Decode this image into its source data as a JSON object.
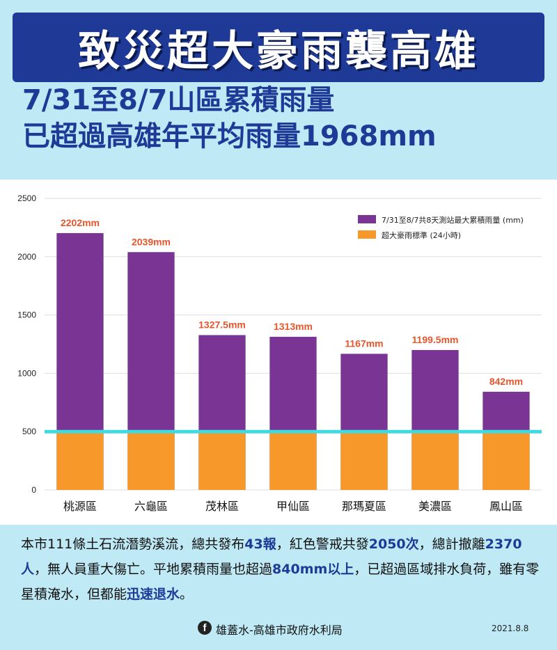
{
  "header": {
    "title": "致災超大豪雨襲高雄",
    "subtitle_line1": "7/31至8/7山區累積雨量",
    "subtitle_line2": "已超過高雄年平均雨量1968mm"
  },
  "chart_data": {
    "type": "bar",
    "categories": [
      "桃源區",
      "六龜區",
      "茂林區",
      "甲仙區",
      "那瑪夏區",
      "美濃區",
      "鳳山區"
    ],
    "series": [
      {
        "name": "7/31至8/7共8天測站最大累積雨量 (mm)",
        "values": [
          2202,
          2039,
          1327.5,
          1313,
          1167,
          1199.5,
          842
        ],
        "labels": [
          "2202mm",
          "2039mm",
          "1327.5mm",
          "1313mm",
          "1167mm",
          "1199.5mm",
          "842mm"
        ],
        "color": "#7a3594"
      },
      {
        "name": "超大豪雨標準 (24小時)",
        "values": [
          500,
          500,
          500,
          500,
          500,
          500,
          500
        ],
        "color": "#f7982a"
      }
    ],
    "yticks": [
      0,
      500,
      1000,
      1500,
      2000,
      2500
    ],
    "ylim": [
      0,
      2500
    ],
    "reference_line": {
      "value": 500,
      "color": "#3fdbe0"
    },
    "label_color": "#e8552b",
    "grid": true,
    "legend_position": "top-right"
  },
  "footer": {
    "text_parts": [
      {
        "t": "本市111條土石流潛勢溪流，總共發布",
        "b": false
      },
      {
        "t": "43報",
        "b": true
      },
      {
        "t": "，紅色警戒共發",
        "b": false
      },
      {
        "t": "2050次",
        "b": true
      },
      {
        "t": "，總計撤離",
        "b": false
      },
      {
        "t": "2370人",
        "b": true
      },
      {
        "t": "，無人員重大傷亡。平地累積雨量也超過",
        "b": false
      },
      {
        "t": "840mm以上",
        "b": true
      },
      {
        "t": "，已超過區域排水負荷，雖有零星積淹水，但都能",
        "b": false
      },
      {
        "t": "迅速退水",
        "b": true
      },
      {
        "t": "。",
        "b": false
      }
    ]
  },
  "source": {
    "icon": "facebook-icon",
    "label": "雄蓋水-高雄市政府水利局",
    "date": "2021.8.8"
  }
}
